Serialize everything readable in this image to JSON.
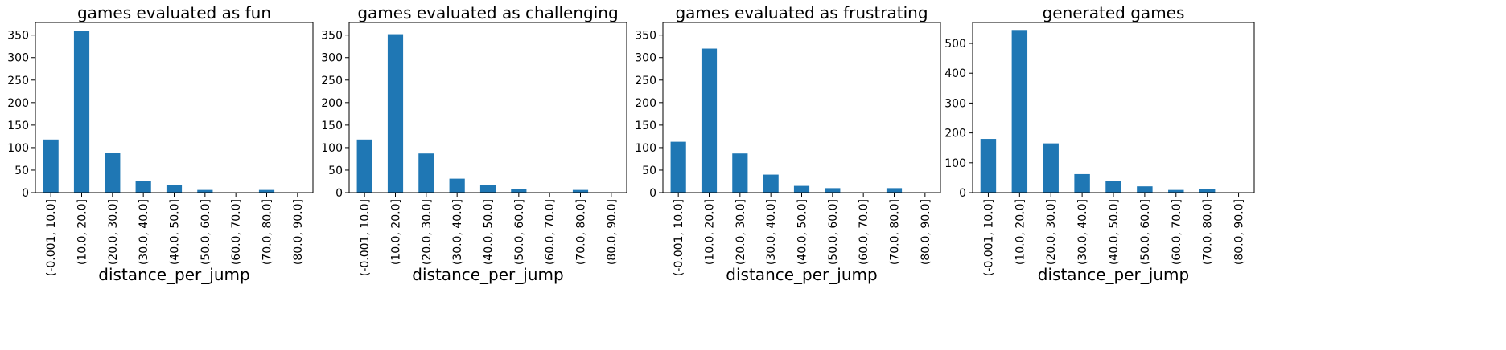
{
  "chart_data": [
    {
      "type": "bar",
      "title": "games evaluated as fun",
      "xlabel": "distance_per_jump",
      "ylabel": "",
      "categories": [
        "(-0.001, 10.0]",
        "(10.0, 20.0]",
        "(20.0, 30.0]",
        "(30.0, 40.0]",
        "(40.0, 50.0]",
        "(50.0, 60.0]",
        "(60.0, 70.0]",
        "(70.0, 80.0]",
        "(80.0, 90.0]"
      ],
      "values": [
        118,
        360,
        88,
        25,
        17,
        6,
        0,
        6,
        0
      ],
      "ylim": [
        0,
        378
      ],
      "yticks": [
        0,
        50,
        100,
        150,
        200,
        250,
        300,
        350
      ],
      "color": "#1f77b4",
      "grid": false
    },
    {
      "type": "bar",
      "title": "games evaluated as challenging",
      "xlabel": "distance_per_jump",
      "ylabel": "",
      "categories": [
        "(-0.001, 10.0]",
        "(10.0, 20.0]",
        "(20.0, 30.0]",
        "(30.0, 40.0]",
        "(40.0, 50.0]",
        "(50.0, 60.0]",
        "(60.0, 70.0]",
        "(70.0, 80.0]",
        "(80.0, 90.0]"
      ],
      "values": [
        118,
        352,
        87,
        31,
        17,
        8,
        0,
        6,
        0
      ],
      "ylim": [
        0,
        378
      ],
      "yticks": [
        0,
        50,
        100,
        150,
        200,
        250,
        300,
        350
      ],
      "color": "#1f77b4",
      "grid": false
    },
    {
      "type": "bar",
      "title": "games evaluated as frustrating",
      "xlabel": "distance_per_jump",
      "ylabel": "",
      "categories": [
        "(-0.001, 10.0]",
        "(10.0, 20.0]",
        "(20.0, 30.0]",
        "(30.0, 40.0]",
        "(40.0, 50.0]",
        "(50.0, 60.0]",
        "(60.0, 70.0]",
        "(70.0, 80.0]",
        "(80.0, 90.0]"
      ],
      "values": [
        113,
        320,
        87,
        40,
        15,
        10,
        0,
        10,
        0
      ],
      "ylim": [
        0,
        378
      ],
      "yticks": [
        0,
        50,
        100,
        150,
        200,
        250,
        300,
        350
      ],
      "color": "#1f77b4",
      "grid": false
    },
    {
      "type": "bar",
      "title": "generated games",
      "xlabel": "distance_per_jump",
      "ylabel": "",
      "categories": [
        "(-0.001, 10.0]",
        "(10.0, 20.0]",
        "(20.0, 30.0]",
        "(30.0, 40.0]",
        "(40.0, 50.0]",
        "(50.0, 60.0]",
        "(60.0, 70.0]",
        "(70.0, 80.0]",
        "(80.0, 90.0]"
      ],
      "values": [
        180,
        545,
        165,
        62,
        40,
        21,
        9,
        12,
        0
      ],
      "ylim": [
        0,
        570
      ],
      "yticks": [
        0,
        100,
        200,
        300,
        400,
        500
      ],
      "color": "#1f77b4",
      "grid": false
    }
  ]
}
